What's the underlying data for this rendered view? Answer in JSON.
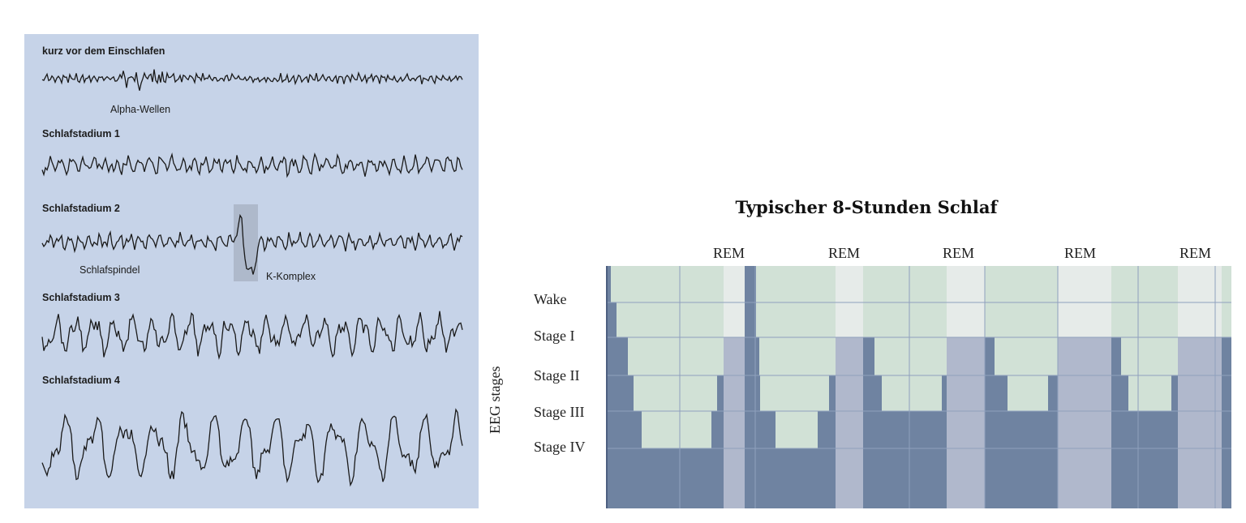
{
  "eeg": {
    "traces": [
      {
        "heading": "kurz vor dem Einschlafen",
        "annotations": [
          "Alpha-Wellen"
        ]
      },
      {
        "heading": "Schlafstadium 1",
        "annotations": []
      },
      {
        "heading": "Schlafstadium 2",
        "annotations": [
          "Schlafspindel",
          "K-Komplex"
        ]
      },
      {
        "heading": "Schlafstadium 3",
        "annotations": []
      },
      {
        "heading": "Schlafstadium 4",
        "annotations": []
      }
    ]
  },
  "hypnogram": {
    "title": "Typischer 8-Stunden Schlaf",
    "y_axis_label": "EEG stages",
    "stage_labels": [
      "Wake",
      "Stage I",
      "Stage II",
      "Stage III",
      "Stage IV"
    ],
    "rem_label": "REM",
    "rem_count": 5,
    "colors": {
      "deep_fill": "#6f83a1",
      "light_fill": "#d1e1d6",
      "rem_band": "#b0b8cc",
      "rem_band_top": "#e6ebe9",
      "grid": "#8fa0bd"
    }
  }
}
